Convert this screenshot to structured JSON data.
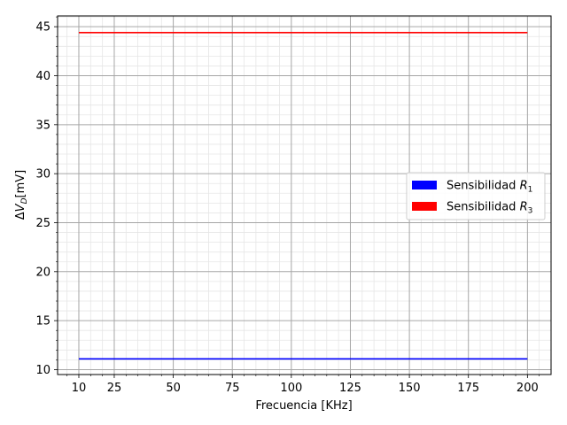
{
  "chart_data": {
    "type": "line",
    "xlabel": "Frecuencia [KHz]",
    "ylabel": "ΔV_D[mV]",
    "x_ticks": [
      10,
      25,
      50,
      75,
      100,
      125,
      150,
      175,
      200
    ],
    "y_ticks": [
      10,
      15,
      20,
      25,
      30,
      35,
      40,
      45
    ],
    "xlim": [
      1,
      210
    ],
    "ylim": [
      9.5,
      46.1
    ],
    "grid": true,
    "legend_position": "center-right",
    "series": [
      {
        "name": "Sensibilidad R_1",
        "legend_text": "Sensibilidad ",
        "legend_sub": "1",
        "color": "#0000ff",
        "x": [
          10,
          200
        ],
        "y": [
          11.1,
          11.1
        ]
      },
      {
        "name": "Sensibilidad R_3",
        "legend_text": "Sensibilidad ",
        "legend_sub": "3",
        "color": "#ff0000",
        "x": [
          10,
          200
        ],
        "y": [
          44.4,
          44.4
        ]
      }
    ]
  }
}
